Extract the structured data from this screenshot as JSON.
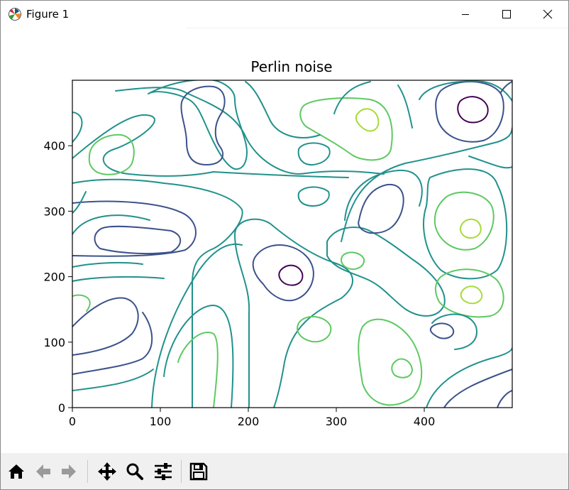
{
  "window": {
    "title": "Figure 1",
    "icons": {
      "app": "matplotlib-logo-icon",
      "minimize": "minimize-icon",
      "maximize": "maximize-icon",
      "close": "close-icon"
    }
  },
  "toolbar": {
    "buttons": [
      {
        "name": "home",
        "icon": "home-icon"
      },
      {
        "name": "back",
        "icon": "back-arrow-icon"
      },
      {
        "name": "forward",
        "icon": "forward-arrow-icon"
      },
      {
        "name": "pan",
        "icon": "pan-move-icon"
      },
      {
        "name": "zoom",
        "icon": "zoom-magnifier-icon"
      },
      {
        "name": "configure-subplots",
        "icon": "sliders-icon"
      },
      {
        "name": "save",
        "icon": "save-disk-icon"
      }
    ]
  },
  "chart_data": {
    "type": "contour",
    "title": "Perlin noise",
    "xlabel": "",
    "ylabel": "",
    "xlim": [
      0,
      500
    ],
    "ylim": [
      0,
      500
    ],
    "xticks": [
      0,
      100,
      200,
      300,
      400
    ],
    "yticks": [
      0,
      100,
      200,
      300,
      400
    ],
    "colormap": "viridis",
    "level_colors": [
      "#440154",
      "#3b528b",
      "#21918c",
      "#5ec962",
      "#a5db36"
    ],
    "grid": false,
    "features": [
      {
        "kind": "minimum",
        "x": 455,
        "y": 452
      },
      {
        "kind": "minimum",
        "x": 248,
        "y": 173
      },
      {
        "kind": "maximum",
        "x": 333,
        "y": 437
      },
      {
        "kind": "maximum",
        "x": 450,
        "y": 275
      },
      {
        "kind": "maximum",
        "x": 452,
        "y": 178
      },
      {
        "kind": "maximum",
        "x": 55,
        "y": 385
      },
      {
        "kind": "maximum",
        "x": 372,
        "y": 62
      },
      {
        "kind": "maximum",
        "x": 140,
        "y": 60
      }
    ]
  }
}
